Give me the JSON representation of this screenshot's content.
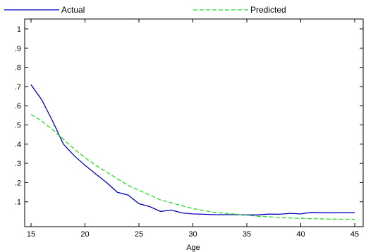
{
  "chart_data": {
    "type": "line",
    "xlabel": "Age",
    "ylabel": "",
    "xlim": [
      15,
      45
    ],
    "ylim": [
      0,
      1.05
    ],
    "xticks": [
      15,
      20,
      25,
      30,
      35,
      40,
      45
    ],
    "xtick_labels": [
      "15",
      "20",
      "25",
      "30",
      "35",
      "40",
      "45"
    ],
    "yticks": [
      0.1,
      0.2,
      0.3,
      0.4,
      0.5,
      0.6,
      0.7,
      0.8,
      0.9,
      1.0
    ],
    "ytick_labels": [
      ".1",
      ".2",
      ".3",
      ".4",
      ".5",
      ".6",
      ".7",
      ".8",
      ".9",
      "1"
    ],
    "grid": false,
    "legend_position": "top",
    "x": [
      15,
      16,
      17,
      18,
      19,
      20,
      21,
      22,
      23,
      24,
      25,
      26,
      27,
      28,
      29,
      30,
      31,
      32,
      33,
      34,
      35,
      36,
      37,
      38,
      39,
      40,
      41,
      42,
      43,
      44,
      45
    ],
    "series": [
      {
        "name": "Actual",
        "color": "#0000bb",
        "style": "solid",
        "values": [
          0.71,
          0.63,
          0.52,
          0.4,
          0.34,
          0.29,
          0.245,
          0.2,
          0.15,
          0.135,
          0.09,
          0.075,
          0.05,
          0.057,
          0.042,
          0.037,
          0.035,
          0.033,
          0.033,
          0.033,
          0.032,
          0.032,
          0.036,
          0.035,
          0.04,
          0.037,
          0.045,
          0.043,
          0.043,
          0.044,
          0.043
        ]
      },
      {
        "name": "Predicted",
        "color": "#22dd22",
        "style": "dashed",
        "values": [
          0.555,
          0.52,
          0.475,
          0.425,
          0.375,
          0.33,
          0.29,
          0.255,
          0.22,
          0.185,
          0.16,
          0.135,
          0.11,
          0.095,
          0.08,
          0.065,
          0.055,
          0.045,
          0.04,
          0.035,
          0.03,
          0.025,
          0.022,
          0.018,
          0.016,
          0.014,
          0.012,
          0.011,
          0.01,
          0.009,
          0.009
        ]
      }
    ]
  }
}
